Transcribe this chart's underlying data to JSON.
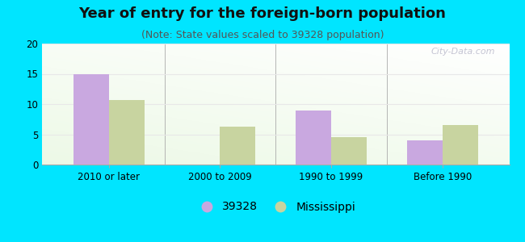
{
  "title": "Year of entry for the foreign-born population",
  "subtitle": "(Note: State values scaled to 39328 population)",
  "categories": [
    "2010 or later",
    "2000 to 2009",
    "1990 to 1999",
    "Before 1990"
  ],
  "values_39328": [
    15.0,
    0,
    9.0,
    4.0
  ],
  "values_mississippi": [
    10.7,
    6.3,
    4.6,
    6.6
  ],
  "bar_color_39328": "#c9a8e0",
  "bar_color_mississippi": "#c8d4a0",
  "background_outer": "#00e5ff",
  "background_inner_top": "#f5f5f0",
  "background_inner_bottom": "#deeedd",
  "ylim": [
    0,
    20
  ],
  "yticks": [
    0,
    5,
    10,
    15,
    20
  ],
  "bar_width": 0.32,
  "legend_label_1": "39328",
  "legend_label_2": "Mississippi",
  "title_fontsize": 13,
  "subtitle_fontsize": 9,
  "tick_fontsize": 8.5,
  "legend_fontsize": 10,
  "watermark": "City-Data.com"
}
